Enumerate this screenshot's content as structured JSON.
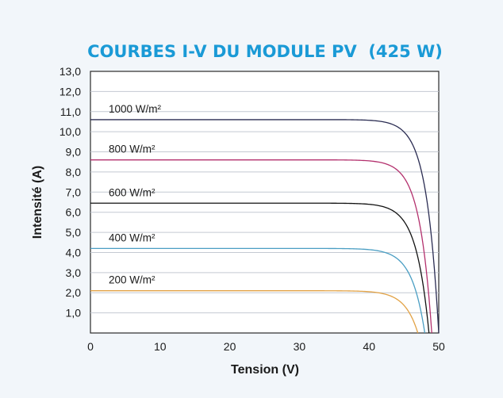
{
  "chart_data": {
    "type": "line",
    "title": "COURBES I-V DU MODULE PV  (425 W)",
    "xlabel": "Tension (V)",
    "ylabel": "Intensité (A)",
    "xlim": [
      0,
      50
    ],
    "ylim": [
      0,
      13
    ],
    "x_ticks": [
      "0",
      "10",
      "20",
      "30",
      "40",
      "50"
    ],
    "y_ticks": [
      "1,0",
      "2,0",
      "3,0",
      "4,0",
      "5,0",
      "6,0",
      "7,0",
      "8,0",
      "9,0",
      "10,0",
      "11,0",
      "12,0",
      "13,0"
    ],
    "grid": true,
    "series": [
      {
        "name": "1000 W/m²",
        "color": "#2a2c52",
        "isc": 10.6,
        "voc": 50.0,
        "knee_v": 36.0
      },
      {
        "name": "800 W/m²",
        "color": "#b3306d",
        "isc": 8.6,
        "voc": 49.0,
        "knee_v": 35.0
      },
      {
        "name": "600 W/m²",
        "color": "#111111",
        "isc": 6.45,
        "voc": 48.6,
        "knee_v": 34.0
      },
      {
        "name": "400 W/m²",
        "color": "#4a9ec3",
        "isc": 4.2,
        "voc": 48.0,
        "knee_v": 33.0
      },
      {
        "name": "200 W/m²",
        "color": "#e2a245",
        "isc": 2.1,
        "voc": 47.0,
        "knee_v": 32.0
      }
    ]
  }
}
